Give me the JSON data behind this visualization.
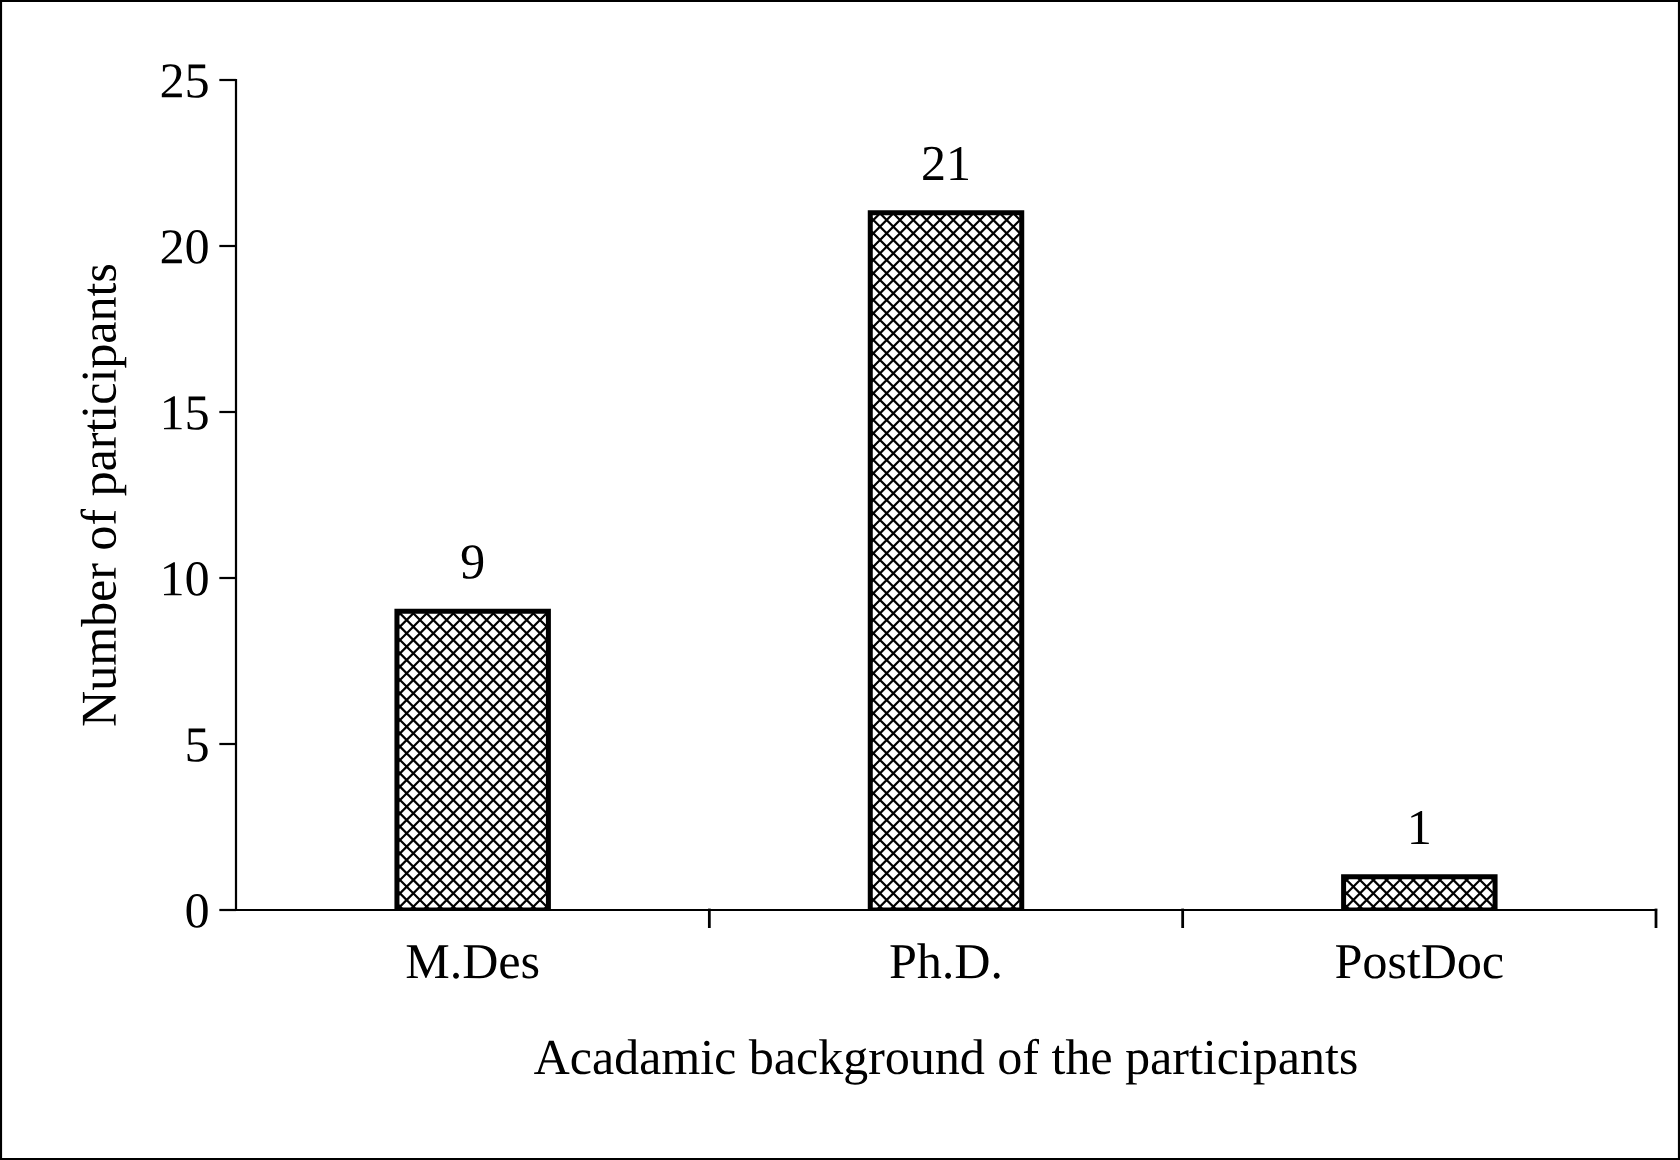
{
  "chart_data": {
    "type": "bar",
    "xlabel": "Acadamic background of the participants",
    "ylabel": "Number of participants",
    "categories": [
      "M.Des",
      "Ph.D.",
      "PostDoc"
    ],
    "values": [
      9,
      21,
      1
    ],
    "color": "#000000",
    "ylim": [
      0,
      25
    ],
    "yticks": [
      0,
      5,
      10,
      15,
      20,
      25
    ],
    "data_labels": true,
    "grid": false
  }
}
